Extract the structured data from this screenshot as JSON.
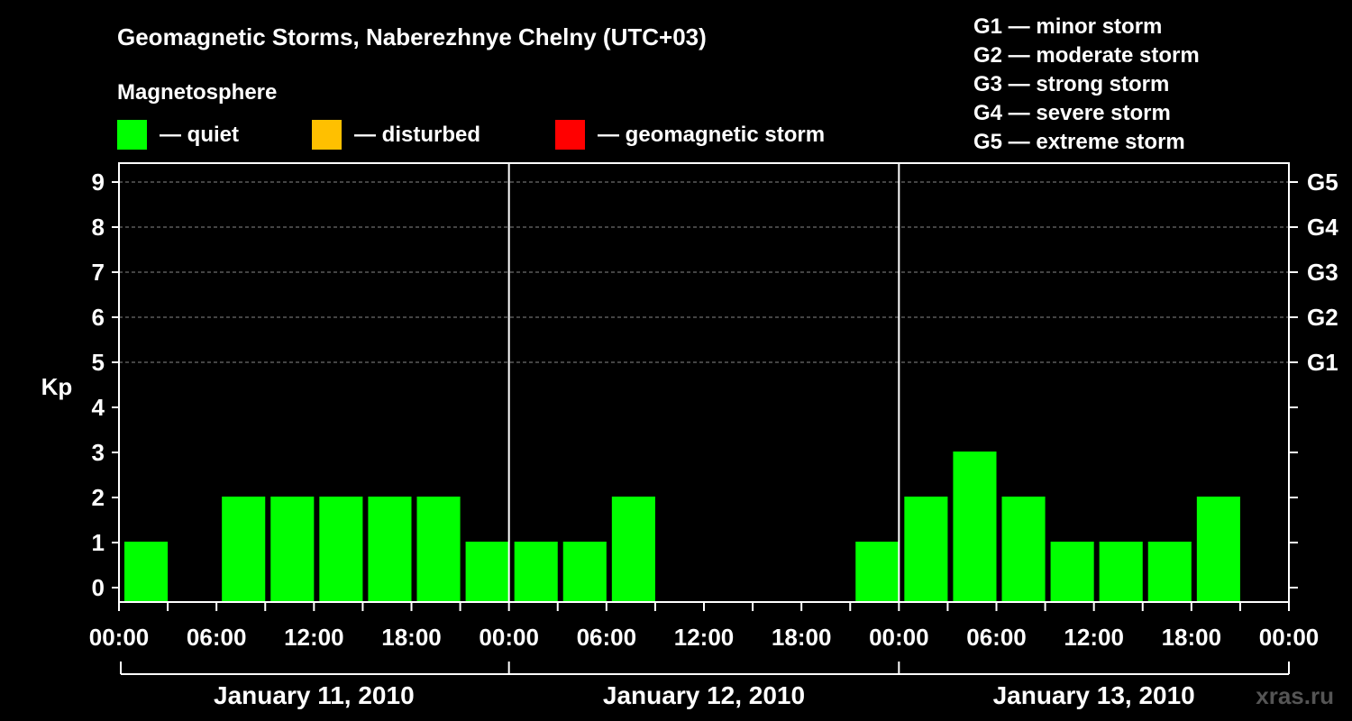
{
  "header": {
    "title": "Geomagnetic Storms, Naberezhnye Chelny (UTC+03)",
    "legend_title": "Magnetosphere",
    "legend": [
      {
        "label": "— quiet",
        "color": "#00ff00"
      },
      {
        "label": "— disturbed",
        "color": "#ffc000"
      },
      {
        "label": "— geomagnetic storm",
        "color": "#ff0000"
      }
    ],
    "storm_scale": [
      "G1 — minor storm",
      "G2 — moderate storm",
      "G3 — strong storm",
      "G4 — severe storm",
      "G5 — extreme storm"
    ]
  },
  "watermark": "xras.ru",
  "chart_data": {
    "type": "bar",
    "ylabel": "Kp",
    "ylim": [
      0,
      9
    ],
    "y_ticks": [
      "0",
      "1",
      "2",
      "3",
      "4",
      "5",
      "6",
      "7",
      "8",
      "9"
    ],
    "right_axis_labels": [
      {
        "kp": 5,
        "label": "G1"
      },
      {
        "kp": 6,
        "label": "G2"
      },
      {
        "kp": 7,
        "label": "G3"
      },
      {
        "kp": 8,
        "label": "G4"
      },
      {
        "kp": 9,
        "label": "G5"
      }
    ],
    "x_tick_labels": [
      "00:00",
      "06:00",
      "12:00",
      "18:00",
      "00:00",
      "06:00",
      "12:00",
      "18:00",
      "00:00",
      "06:00",
      "12:00",
      "18:00",
      "00:00"
    ],
    "days": [
      "January 11, 2010",
      "January 12, 2010",
      "January 13, 2010"
    ],
    "interval_hours": 3,
    "values": [
      1,
      null,
      2,
      2,
      2,
      2,
      2,
      1,
      1,
      1,
      2,
      null,
      null,
      null,
      null,
      1,
      2,
      3,
      2,
      1,
      1,
      1,
      2,
      null
    ],
    "bar_color": "#00ff00",
    "grid_dashed_at": [
      5,
      6,
      7,
      8,
      9
    ],
    "legend_position": "top"
  }
}
